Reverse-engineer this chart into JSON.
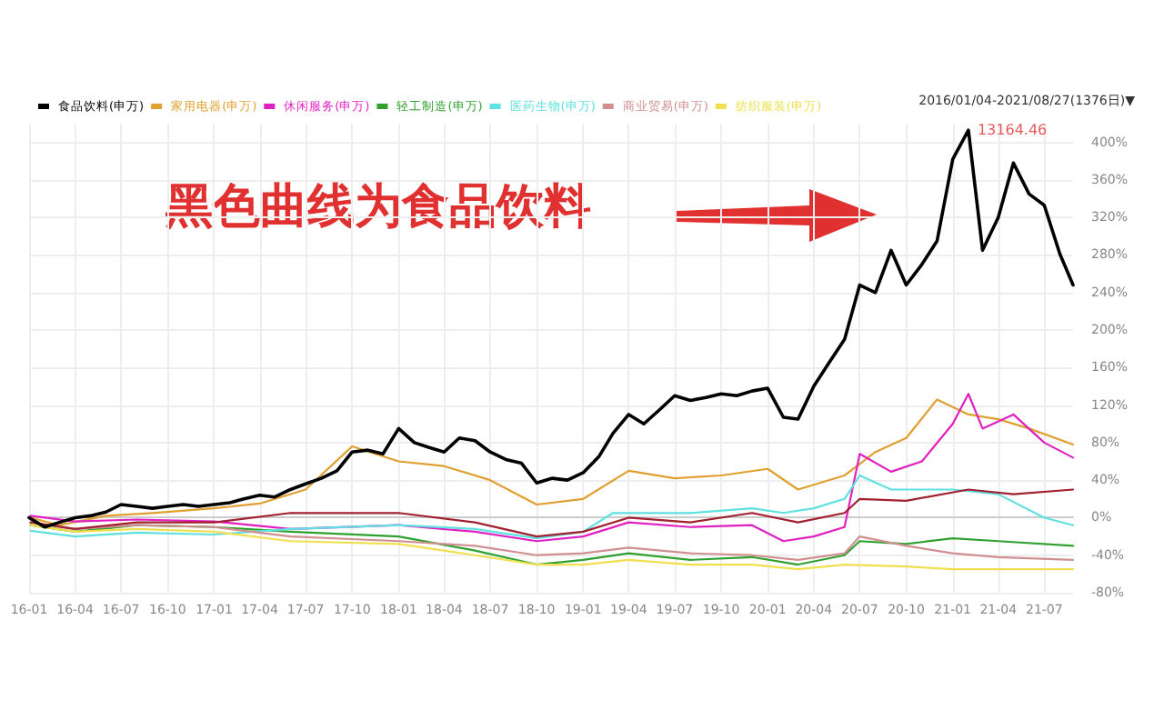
{
  "chart_data": {
    "type": "line",
    "annotations": [
      "黑色曲线为食品饮料",
      "2016/01/04-2021/08/27(1376日)▼",
      {
        "text": "13164.46",
        "x": "2021-02",
        "y": 413
      }
    ],
    "xlim": [
      "2016-01",
      "2021-08-27"
    ],
    "xticks": [
      {
        "value": "2016-01",
        "label": "16-01"
      },
      {
        "value": "2016-04",
        "label": "16-04"
      },
      {
        "value": "2016-07",
        "label": "16-07"
      },
      {
        "value": "2016-10",
        "label": "16-10"
      },
      {
        "value": "2017-01",
        "label": "17-01"
      },
      {
        "value": "2017-04",
        "label": "17-04"
      },
      {
        "value": "2017-07",
        "label": "17-07"
      },
      {
        "value": "2017-10",
        "label": "17-10"
      },
      {
        "value": "2018-01",
        "label": "18-01"
      },
      {
        "value": "2018-04",
        "label": "18-04"
      },
      {
        "value": "2018-07",
        "label": "18-07"
      },
      {
        "value": "2018-10",
        "label": "18-10"
      },
      {
        "value": "2019-01",
        "label": "19-01"
      },
      {
        "value": "2019-04",
        "label": "19-04"
      },
      {
        "value": "2019-07",
        "label": "19-07"
      },
      {
        "value": "2019-10",
        "label": "19-10"
      },
      {
        "value": "2020-01",
        "label": "20-01"
      },
      {
        "value": "2020-04",
        "label": "20-04"
      },
      {
        "value": "2020-07",
        "label": "20-07"
      },
      {
        "value": "2020-10",
        "label": "20-10"
      },
      {
        "value": "2021-01",
        "label": "21-01"
      },
      {
        "value": "2021-04",
        "label": "21-04"
      },
      {
        "value": "2021-07",
        "label": "21-07"
      }
    ],
    "ylim": [
      -80,
      420
    ],
    "yticks": [
      {
        "value": -80,
        "label": "-80%"
      },
      {
        "value": -40,
        "label": "-40%"
      },
      {
        "value": 0,
        "label": "0%"
      },
      {
        "value": 40,
        "label": "40%"
      },
      {
        "value": 80,
        "label": "80%"
      },
      {
        "value": 120,
        "label": "120%"
      },
      {
        "value": 160,
        "label": "160%"
      },
      {
        "value": 200,
        "label": "200%"
      },
      {
        "value": 240,
        "label": "240%"
      },
      {
        "value": 280,
        "label": "280%"
      },
      {
        "value": 320,
        "label": "320%"
      },
      {
        "value": 360,
        "label": "360%"
      },
      {
        "value": 400,
        "label": "400%"
      }
    ],
    "grid": true,
    "legend": "top left",
    "marker": "none",
    "line_style": "solid",
    "series": [
      {
        "name": "食品饮料(申万)",
        "color": "#000000",
        "x": [
          "2016-01",
          "2016-02",
          "2016-03",
          "2016-04",
          "2016-05",
          "2016-06",
          "2016-07",
          "2016-08",
          "2016-09",
          "2016-10",
          "2016-11",
          "2016-12",
          "2017-01",
          "2017-02",
          "2017-03",
          "2017-04",
          "2017-05",
          "2017-06",
          "2017-07",
          "2017-08",
          "2017-09",
          "2017-10",
          "2017-11",
          "2017-12",
          "2018-01",
          "2018-02",
          "2018-03",
          "2018-04",
          "2018-05",
          "2018-06",
          "2018-07",
          "2018-08",
          "2018-09",
          "2018-10",
          "2018-11",
          "2018-12",
          "2019-01",
          "2019-02",
          "2019-03",
          "2019-04",
          "2019-05",
          "2019-06",
          "2019-07",
          "2019-08",
          "2019-09",
          "2019-10",
          "2019-11",
          "2019-12",
          "2020-01",
          "2020-02",
          "2020-03",
          "2020-04",
          "2020-05",
          "2020-06",
          "2020-07",
          "2020-08",
          "2020-09",
          "2020-10",
          "2020-11",
          "2020-12",
          "2021-01",
          "2021-02",
          "2021-03",
          "2021-04",
          "2021-05",
          "2021-06",
          "2021-07",
          "2021-08",
          "2021-08-27"
        ],
        "values": [
          0,
          -10,
          -5,
          0,
          2,
          6,
          14,
          12,
          10,
          12,
          14,
          12,
          14,
          16,
          20,
          24,
          22,
          30,
          36,
          42,
          50,
          70,
          72,
          68,
          95,
          80,
          75,
          70,
          85,
          82,
          70,
          62,
          58,
          37,
          42,
          40,
          48,
          65,
          90,
          110,
          100,
          115,
          130,
          125,
          128,
          132,
          130,
          135,
          138,
          107,
          105,
          140,
          165,
          190,
          248,
          240,
          285,
          248,
          270,
          295,
          382,
          413,
          285,
          320,
          378,
          345,
          333,
          281,
          248
        ]
      },
      {
        "name": "家用电器(申万)",
        "color": "#e0a030",
        "x": [
          "2016-01-04",
          "2016-03",
          "2016-06",
          "2016-09",
          "2017-01",
          "2017-04",
          "2017-07",
          "2017-10",
          "2018-01",
          "2018-04",
          "2018-07",
          "2018-10",
          "2019-01",
          "2019-04",
          "2019-07",
          "2019-10",
          "2020-01",
          "2020-03",
          "2020-06",
          "2020-08",
          "2020-10",
          "2020-12",
          "2021-02",
          "2021-04",
          "2021-06",
          "2021-08-27"
        ],
        "values": [
          0,
          -8,
          2,
          5,
          10,
          15,
          30,
          76,
          60,
          55,
          40,
          14,
          20,
          50,
          42,
          45,
          52,
          30,
          45,
          70,
          85,
          126,
          110,
          105,
          95,
          78
        ]
      },
      {
        "name": "休闲服务(申万)",
        "color": "#e020c0",
        "x": [
          "2016-01-04",
          "2016-04",
          "2016-08",
          "2017-01",
          "2017-06",
          "2018-01",
          "2018-06",
          "2018-10",
          "2019-01",
          "2019-04",
          "2019-08",
          "2019-12",
          "2020-02",
          "2020-04",
          "2020-06",
          "2020-07",
          "2020-09",
          "2020-11",
          "2021-01",
          "2021-02",
          "2021-03",
          "2021-05",
          "2021-07",
          "2021-08-27"
        ],
        "values": [
          2,
          -4,
          -2,
          -4,
          -12,
          -8,
          -15,
          -25,
          -20,
          -5,
          -10,
          -8,
          -25,
          -20,
          -10,
          68,
          49,
          60,
          100,
          132,
          95,
          110,
          80,
          64
        ]
      },
      {
        "name": "轻工制造(申万)",
        "color": "#30a030",
        "x": [
          "2016-01-04",
          "2016-04",
          "2016-08",
          "2017-01",
          "2017-06",
          "2018-01",
          "2018-06",
          "2018-10",
          "2019-01",
          "2019-04",
          "2019-08",
          "2019-12",
          "2020-03",
          "2020-06",
          "2020-07",
          "2020-10",
          "2021-01",
          "2021-04",
          "2021-08-27"
        ],
        "values": [
          -8,
          -15,
          -8,
          -10,
          -15,
          -20,
          -35,
          -50,
          -45,
          -38,
          -45,
          -42,
          -50,
          -40,
          -25,
          -28,
          -22,
          -25,
          -30
        ]
      },
      {
        "name": "医药生物(申万)",
        "color": "#60e0e0",
        "x": [
          "2016-01-04",
          "2016-04",
          "2016-08",
          "2017-01",
          "2017-06",
          "2018-01",
          "2018-06",
          "2018-10",
          "2019-01",
          "2019-03",
          "2019-08",
          "2019-12",
          "2020-02",
          "2020-04",
          "2020-06",
          "2020-07",
          "2020-09",
          "2021-01",
          "2021-04",
          "2021-07",
          "2021-08-27"
        ],
        "values": [
          -14,
          -20,
          -16,
          -18,
          -12,
          -8,
          -12,
          -22,
          -15,
          5,
          5,
          10,
          5,
          10,
          20,
          45,
          30,
          30,
          25,
          0,
          -8
        ]
      },
      {
        "name": "商业贸易(申万)",
        "color": "#d09090",
        "x": [
          "2016-01-04",
          "2016-04",
          "2016-08",
          "2017-01",
          "2017-06",
          "2018-01",
          "2018-06",
          "2018-10",
          "2019-01",
          "2019-04",
          "2019-08",
          "2019-12",
          "2020-03",
          "2020-06",
          "2020-07",
          "2020-10",
          "2021-01",
          "2021-04",
          "2021-08-27"
        ],
        "values": [
          -5,
          -12,
          -8,
          -10,
          -20,
          -25,
          -30,
          -40,
          -38,
          -32,
          -38,
          -40,
          -45,
          -38,
          -20,
          -30,
          -38,
          -42,
          -45
        ]
      },
      {
        "name": "纺织服装(申万)",
        "color": "#f0e050",
        "x": [
          "2016-01-04",
          "2016-04",
          "2016-08",
          "2017-01",
          "2017-06",
          "2018-01",
          "2018-06",
          "2018-10",
          "2019-01",
          "2019-04",
          "2019-08",
          "2019-12",
          "2020-03",
          "2020-06",
          "2020-10",
          "2021-01",
          "2021-04",
          "2021-08-27"
        ],
        "values": [
          -8,
          -15,
          -12,
          -15,
          -25,
          -28,
          -40,
          -50,
          -50,
          -45,
          -50,
          -50,
          -55,
          -50,
          -52,
          -55,
          -55,
          -55
        ]
      },
      {
        "color": "#a02030",
        "x": [
          "2016-01-04",
          "2016-04",
          "2016-08",
          "2017-01",
          "2017-06",
          "2018-01",
          "2018-06",
          "2018-10",
          "2019-01",
          "2019-04",
          "2019-08",
          "2019-12",
          "2020-03",
          "2020-06",
          "2020-07",
          "2020-10",
          "2021-02",
          "2021-05",
          "2021-08-27"
        ],
        "values": [
          -5,
          -12,
          -5,
          -5,
          5,
          5,
          -5,
          -20,
          -15,
          0,
          -5,
          5,
          -5,
          5,
          20,
          18,
          30,
          25,
          30
        ]
      }
    ]
  }
}
